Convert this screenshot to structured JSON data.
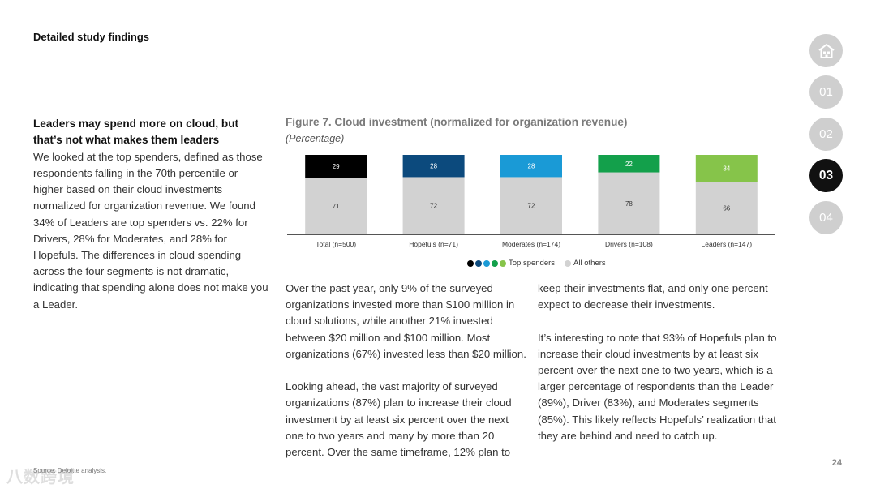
{
  "header": {
    "title": "Detailed study findings"
  },
  "left": {
    "headline": "Leaders may spend more on cloud, but that’s not what makes them leaders",
    "body": "We looked at the top spenders, defined as those respondents falling in the 70th percentile or higher based on their cloud investments normalized for organization revenue. We found 34% of Leaders are top spenders vs. 22% for Drivers, 28% for Moderates, and 28% for Hopefuls. The differences in cloud spending across the four segments is not dramatic, indicating that spending alone does not make you a Leader."
  },
  "figure": {
    "title": "Figure 7. Cloud investment (normalized for organization revenue)",
    "subtitle": "(Percentage)"
  },
  "chart_data": {
    "type": "bar",
    "stacked": true,
    "categories": [
      "Total (n=500)",
      "Hopefuls (n=71)",
      "Moderates (n=174)",
      "Drivers (n=108)",
      "Leaders (n=147)"
    ],
    "series": [
      {
        "name": "All others",
        "values": [
          71,
          72,
          72,
          78,
          66
        ],
        "colors": [
          "#d2d2d2",
          "#d2d2d2",
          "#d2d2d2",
          "#d2d2d2",
          "#d2d2d2"
        ]
      },
      {
        "name": "Top spenders",
        "values": [
          29,
          28,
          28,
          22,
          34
        ],
        "colors": [
          "#000000",
          "#0c4a7d",
          "#1a9ad6",
          "#13a04b",
          "#86c44a"
        ]
      }
    ],
    "ylim": [
      0,
      100
    ],
    "legend": [
      {
        "label": "Top spenders",
        "colors": [
          "#000000",
          "#0c4a7d",
          "#1a9ad6",
          "#13a04b",
          "#86c44a"
        ]
      },
      {
        "label": "All others",
        "colors": [
          "#d2d2d2"
        ]
      }
    ]
  },
  "body": {
    "col1": [
      "Over the past year, only 9% of the surveyed organizations invested more than $100 million in cloud solutions, while another 21% invested between $20 million and $100 million. Most organizations (67%) invested less than $20 million.",
      "Looking ahead, the vast majority of surveyed organizations (87%) plan to increase their cloud investment by at least six percent over the next one to two years and many by more than 20 percent. Over the same timeframe, 12% plan to"
    ],
    "col2": [
      "keep their investments flat, and only one percent expect to decrease their investments.",
      "It’s interesting to note that 93% of Hopefuls plan to increase their cloud investments by at least six percent over the next one to two years, which is a larger percentage of respondents than the Leader (89%), Driver (83%), and Moderates segments (85%). This likely reflects Hopefuls’ realization that they are behind and need to catch up."
    ]
  },
  "footer": {
    "source": "Source: Deloitte analysis.",
    "page": "24",
    "watermark": "八数跨境"
  },
  "nav": {
    "items": [
      "01",
      "02",
      "03",
      "04"
    ],
    "active": "03",
    "home_icon": "home-icon"
  }
}
